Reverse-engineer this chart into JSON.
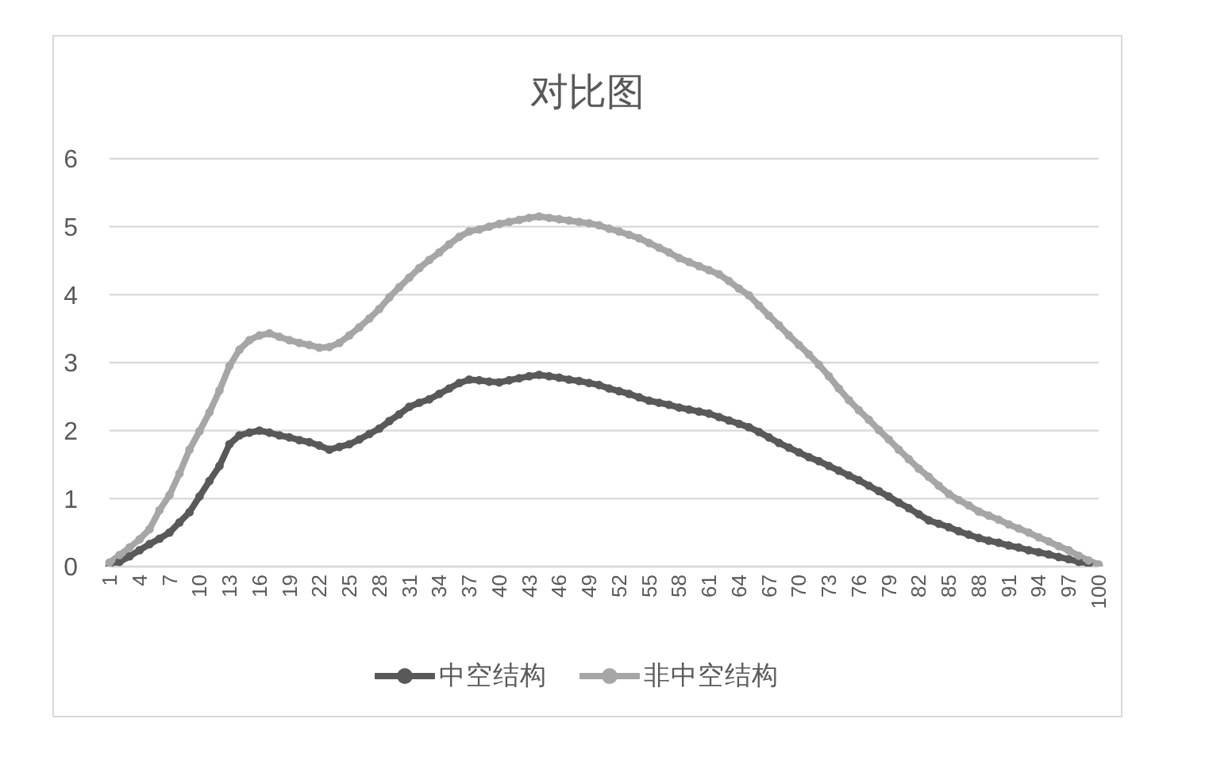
{
  "chart_data": {
    "type": "line",
    "title": "对比图",
    "categories": [
      "1",
      null,
      null,
      "4",
      null,
      null,
      "7",
      null,
      null,
      "10",
      null,
      null,
      "13",
      null,
      null,
      "16",
      null,
      null,
      "19",
      null,
      null,
      "22",
      null,
      null,
      "25",
      null,
      null,
      "28",
      null,
      null,
      "31",
      null,
      null,
      "34",
      null,
      null,
      "37",
      null,
      null,
      "40",
      null,
      null,
      "43",
      null,
      null,
      "46",
      null,
      null,
      "49",
      null,
      null,
      "52",
      null,
      null,
      "55",
      null,
      null,
      "58",
      null,
      null,
      "61",
      null,
      null,
      "64",
      null,
      null,
      "67",
      null,
      null,
      "70",
      null,
      null,
      "73",
      null,
      null,
      "76",
      null,
      null,
      "79",
      null,
      null,
      "82",
      null,
      null,
      "85",
      null,
      null,
      "88",
      null,
      null,
      "91",
      null,
      null,
      "94",
      null,
      null,
      "97",
      null,
      null,
      "100"
    ],
    "series": [
      {
        "name": "中空结构",
        "color": "#595959",
        "values": [
          0.0,
          0.07,
          0.15,
          0.24,
          0.33,
          0.41,
          0.5,
          0.65,
          0.8,
          1.03,
          1.26,
          1.48,
          1.8,
          1.93,
          1.97,
          2.0,
          1.97,
          1.93,
          1.9,
          1.86,
          1.83,
          1.78,
          1.72,
          1.76,
          1.8,
          1.87,
          1.95,
          2.03,
          2.14,
          2.24,
          2.35,
          2.41,
          2.46,
          2.54,
          2.62,
          2.7,
          2.75,
          2.74,
          2.72,
          2.71,
          2.74,
          2.77,
          2.8,
          2.82,
          2.8,
          2.78,
          2.75,
          2.73,
          2.7,
          2.67,
          2.62,
          2.58,
          2.54,
          2.49,
          2.44,
          2.41,
          2.38,
          2.34,
          2.31,
          2.28,
          2.25,
          2.2,
          2.15,
          2.1,
          2.05,
          1.98,
          1.9,
          1.82,
          1.75,
          1.68,
          1.61,
          1.55,
          1.48,
          1.41,
          1.34,
          1.27,
          1.19,
          1.11,
          1.03,
          0.94,
          0.86,
          0.77,
          0.68,
          0.63,
          0.58,
          0.52,
          0.47,
          0.42,
          0.38,
          0.35,
          0.31,
          0.28,
          0.24,
          0.21,
          0.18,
          0.14,
          0.11,
          0.07,
          0.04,
          0.0
        ]
      },
      {
        "name": "非中空结构",
        "color": "#a6a6a6",
        "values": [
          0.06,
          0.17,
          0.28,
          0.4,
          0.55,
          0.83,
          1.05,
          1.37,
          1.72,
          1.99,
          2.27,
          2.59,
          2.95,
          3.19,
          3.33,
          3.4,
          3.43,
          3.38,
          3.33,
          3.29,
          3.26,
          3.22,
          3.23,
          3.29,
          3.4,
          3.52,
          3.65,
          3.79,
          3.96,
          4.11,
          4.25,
          4.39,
          4.51,
          4.62,
          4.74,
          4.85,
          4.93,
          4.96,
          5.0,
          5.04,
          5.07,
          5.1,
          5.13,
          5.15,
          5.13,
          5.11,
          5.09,
          5.07,
          5.05,
          5.02,
          4.97,
          4.93,
          4.88,
          4.83,
          4.76,
          4.69,
          4.62,
          4.54,
          4.48,
          4.42,
          4.36,
          4.3,
          4.2,
          4.09,
          3.99,
          3.84,
          3.69,
          3.55,
          3.4,
          3.26,
          3.12,
          2.97,
          2.8,
          2.62,
          2.45,
          2.3,
          2.16,
          2.01,
          1.87,
          1.72,
          1.58,
          1.44,
          1.32,
          1.19,
          1.07,
          0.98,
          0.9,
          0.81,
          0.75,
          0.69,
          0.62,
          0.56,
          0.5,
          0.43,
          0.37,
          0.3,
          0.24,
          0.16,
          0.09,
          0.03
        ]
      }
    ],
    "ylim": [
      0,
      6
    ],
    "yticks": [
      0,
      1,
      2,
      3,
      4,
      5,
      6
    ],
    "grid": "y",
    "legend": "bottom",
    "marker": "circle"
  }
}
